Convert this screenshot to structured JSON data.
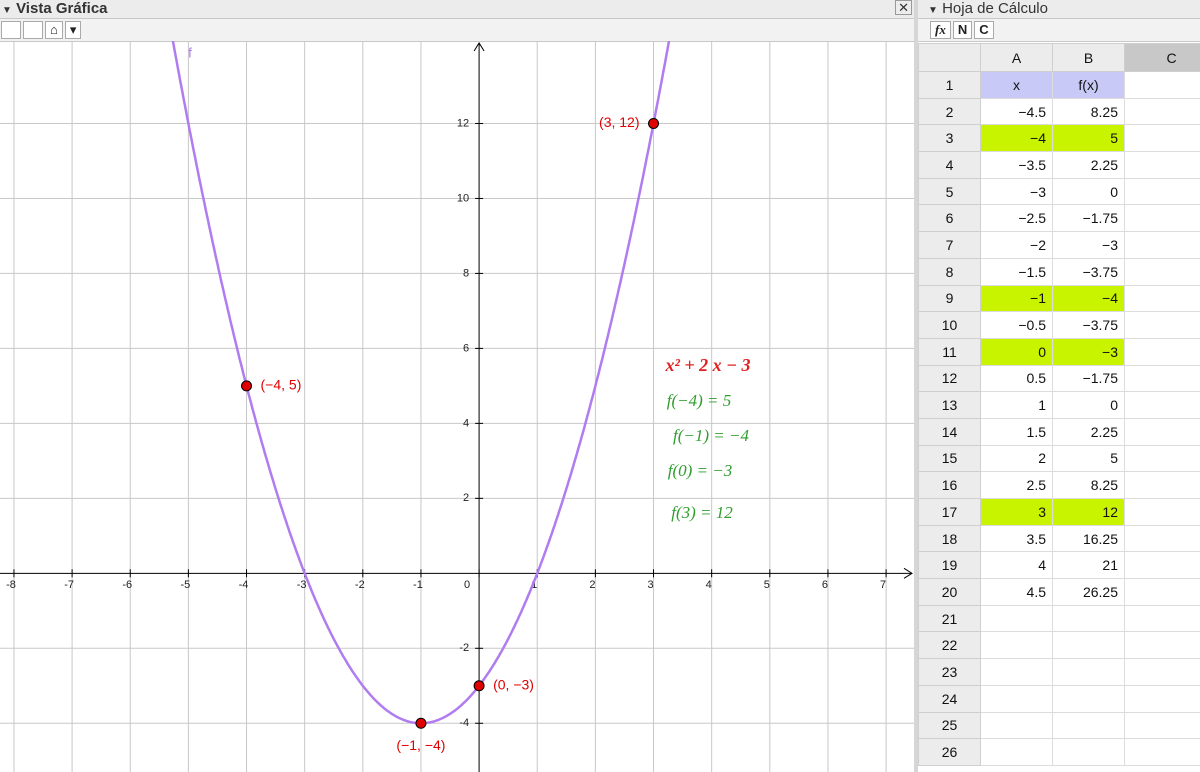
{
  "graphics_view": {
    "title": "Vista Gráfica",
    "function_label": "f",
    "curve_color": "#b07cf0",
    "point_color": "#e00000",
    "xlim": [
      -8.24,
      7.48
    ],
    "ylim": [
      -5.3,
      14.2
    ],
    "xticks": [
      -8,
      -7,
      -6,
      -5,
      -4,
      -3,
      -2,
      -1,
      0,
      1,
      2,
      3,
      4,
      5,
      6,
      7
    ],
    "yticks": [
      -4,
      -2,
      2,
      4,
      6,
      8,
      10,
      12
    ],
    "grid": true,
    "points": [
      {
        "x": -4,
        "y": 5,
        "label": "(−4, 5)"
      },
      {
        "x": -1,
        "y": -4,
        "label": "(−1, −4)"
      },
      {
        "x": 0,
        "y": -3,
        "label": "(0, −3)"
      },
      {
        "x": 3,
        "y": 12,
        "label": "(3, 12)"
      }
    ],
    "formula": "x² + 2 x − 3",
    "evaluations": [
      "f(−4) = 5",
      "f(−1) = −4",
      "f(0) = −3",
      "f(3) = 12"
    ]
  },
  "spreadsheet": {
    "title": "Hoja de Cálculo",
    "toolbar": [
      "fx",
      "N",
      "C"
    ],
    "columns": [
      "A",
      "B",
      "C"
    ],
    "header_color": "#c9c9f7",
    "highlight_color": "#c8f400",
    "rows": [
      {
        "number": "1",
        "cells": [
          "x",
          "f(x)"
        ],
        "header": true
      },
      {
        "number": "2",
        "cells": [
          "−4.5",
          "8.25"
        ]
      },
      {
        "number": "3",
        "cells": [
          "−4",
          "5"
        ],
        "highlight": true
      },
      {
        "number": "4",
        "cells": [
          "−3.5",
          "2.25"
        ]
      },
      {
        "number": "5",
        "cells": [
          "−3",
          "0"
        ]
      },
      {
        "number": "6",
        "cells": [
          "−2.5",
          "−1.75"
        ]
      },
      {
        "number": "7",
        "cells": [
          "−2",
          "−3"
        ]
      },
      {
        "number": "8",
        "cells": [
          "−1.5",
          "−3.75"
        ]
      },
      {
        "number": "9",
        "cells": [
          "−1",
          "−4"
        ],
        "highlight": true
      },
      {
        "number": "10",
        "cells": [
          "−0.5",
          "−3.75"
        ]
      },
      {
        "number": "11",
        "cells": [
          "0",
          "−3"
        ],
        "highlight": true
      },
      {
        "number": "12",
        "cells": [
          "0.5",
          "−1.75"
        ]
      },
      {
        "number": "13",
        "cells": [
          "1",
          "0"
        ]
      },
      {
        "number": "14",
        "cells": [
          "1.5",
          "2.25"
        ]
      },
      {
        "number": "15",
        "cells": [
          "2",
          "5"
        ]
      },
      {
        "number": "16",
        "cells": [
          "2.5",
          "8.25"
        ]
      },
      {
        "number": "17",
        "cells": [
          "3",
          "12"
        ],
        "highlight": true
      },
      {
        "number": "18",
        "cells": [
          "3.5",
          "16.25"
        ]
      },
      {
        "number": "19",
        "cells": [
          "4",
          "21"
        ]
      },
      {
        "number": "20",
        "cells": [
          "4.5",
          "26.25"
        ]
      },
      {
        "number": "21",
        "cells": []
      },
      {
        "number": "22",
        "cells": []
      },
      {
        "number": "23",
        "cells": []
      },
      {
        "number": "24",
        "cells": []
      },
      {
        "number": "25",
        "cells": []
      },
      {
        "number": "26",
        "cells": []
      }
    ]
  }
}
